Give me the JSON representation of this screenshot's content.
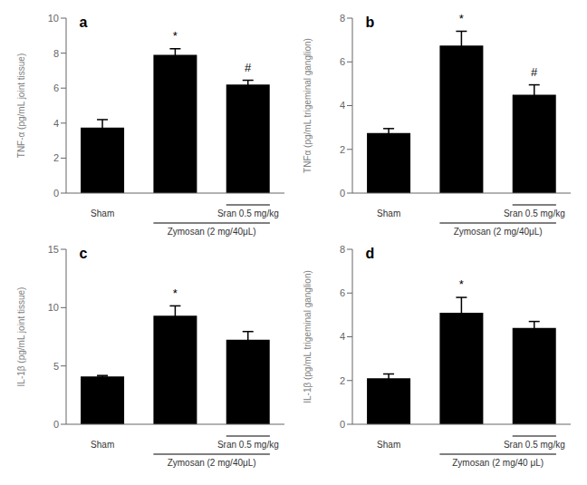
{
  "chart_data": [
    {
      "type": "bar",
      "title": "a",
      "ylabel": "TNF-α (pg/mL joint tissue)",
      "categories": [
        "Sham",
        null,
        "Sran 0.5 mg/kg"
      ],
      "values": [
        3.75,
        7.9,
        6.2
      ],
      "errors": [
        0.45,
        0.35,
        0.25
      ],
      "sig_labels": [
        null,
        "*",
        "#"
      ],
      "annotations": [
        "Zymosan (2 mg/40μL)"
      ],
      "ylim": [
        0,
        10
      ],
      "yticks": [
        0,
        2,
        4,
        6,
        8,
        10
      ],
      "grid": false
    },
    {
      "type": "bar",
      "title": "b",
      "ylabel": "TNFα (pg/mL trigeminal ganglion)",
      "categories": [
        "Sham",
        null,
        "Sran 0.5 mg/kg"
      ],
      "values": [
        2.75,
        6.75,
        4.5
      ],
      "errors": [
        0.2,
        0.65,
        0.45
      ],
      "sig_labels": [
        null,
        "*",
        "#"
      ],
      "annotations": [
        "Zymosan (2 mg/40μL)"
      ],
      "ylim": [
        0,
        8
      ],
      "yticks": [
        0,
        2,
        4,
        6,
        8
      ],
      "grid": false
    },
    {
      "type": "bar",
      "title": "c",
      "ylabel": "IL-1β (pg/mL joint tissue)",
      "categories": [
        "Sham",
        null,
        "Sran 0.5 mg/kg"
      ],
      "values": [
        4.1,
        9.3,
        7.25
      ],
      "errors": [
        0.08,
        0.85,
        0.7
      ],
      "sig_labels": [
        null,
        "*",
        null
      ],
      "annotations": [
        "Zymosan (2 mg/40μL)"
      ],
      "ylim": [
        0,
        15
      ],
      "yticks": [
        0,
        5,
        10,
        15
      ],
      "grid": false
    },
    {
      "type": "bar",
      "title": "d",
      "ylabel": "IL-1β (pg/mL trigeminal ganglion)",
      "categories": [
        "Sham",
        null,
        "Sran 0.5 mg/kg"
      ],
      "values": [
        2.1,
        5.1,
        4.4
      ],
      "errors": [
        0.2,
        0.7,
        0.3
      ],
      "sig_labels": [
        null,
        "*",
        null
      ],
      "annotations": [
        "Zymosan (2 mg/40 μL)"
      ],
      "ylim": [
        0,
        8
      ],
      "yticks": [
        0,
        2,
        4,
        6,
        8
      ],
      "grid": false
    }
  ]
}
